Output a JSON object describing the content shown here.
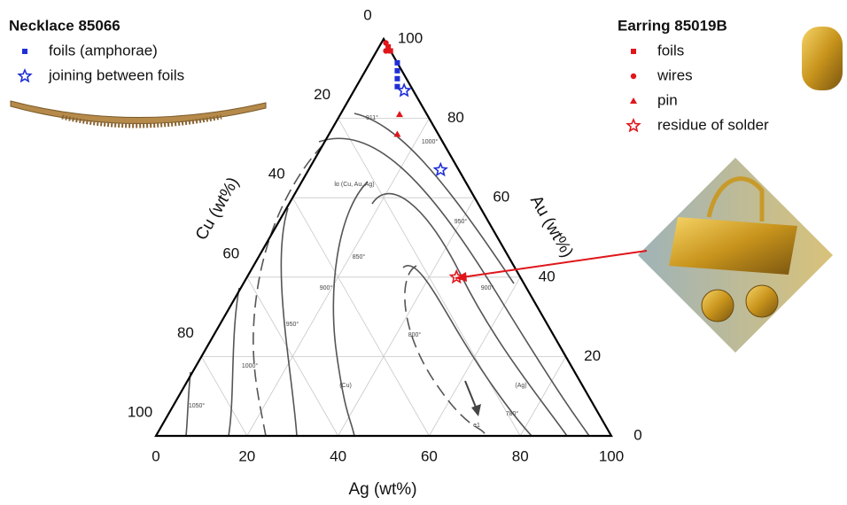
{
  "chart_data": {
    "type": "ternary",
    "axes": {
      "ag": {
        "label": "Ag (wt%)",
        "lim": [
          0,
          100
        ],
        "ticks": [
          0,
          20,
          40,
          60,
          80,
          100
        ]
      },
      "au": {
        "label": "Au (wt%)",
        "lim": [
          0,
          100
        ],
        "ticks": [
          0,
          20,
          40,
          60,
          80,
          100
        ]
      },
      "cu": {
        "label": "Cu (wt%)",
        "lim": [
          0,
          100
        ],
        "ticks": [
          0,
          20,
          40,
          60,
          80,
          100
        ]
      }
    },
    "grid": true,
    "groups": [
      {
        "title": "Necklace 85066",
        "series": [
          {
            "name": "foils (amphorae)",
            "color": "#1f2fd6",
            "marker": "square",
            "ag": [
              6,
              7,
              8,
              9
            ],
            "au": [
              94,
              92,
              90,
              88
            ],
            "cu": [
              0,
              1,
              2,
              3
            ]
          },
          {
            "name": "joining between foils",
            "color": "#1f2fd6",
            "marker": "star",
            "ag": [
              11,
              29
            ],
            "au": [
              87,
              67
            ],
            "cu": [
              2,
              4
            ]
          }
        ]
      },
      {
        "title": "Earring 85019B",
        "series": [
          {
            "name": "foils",
            "color": "#e0161b",
            "marker": "square",
            "ag": [
              3,
              2
            ],
            "au": [
              97,
              98
            ],
            "cu": [
              0,
              0
            ]
          },
          {
            "name": "wires",
            "color": "#e0161b",
            "marker": "circle",
            "ag": [
              1,
              2
            ],
            "au": [
              99,
              97
            ],
            "cu": [
              0,
              1
            ]
          },
          {
            "name": "pin",
            "color": "#e0161b",
            "marker": "triangle",
            "ag": [
              13,
              15
            ],
            "au": [
              81,
              76
            ],
            "cu": [
              6,
              9
            ]
          },
          {
            "name": "residue of solder",
            "color": "#e0161b",
            "marker": "star",
            "ag": [
              46
            ],
            "au": [
              40
            ],
            "cu": [
              14
            ]
          }
        ]
      }
    ],
    "annotations": [
      "911°",
      "1000°",
      "lα (Cu, Au, Ag)",
      "950°",
      "850°",
      "900°",
      "900°",
      "950°",
      "800°",
      "1000°",
      "(Cu)",
      "(Ag)",
      "1050°",
      "780°",
      "e1"
    ]
  }
}
